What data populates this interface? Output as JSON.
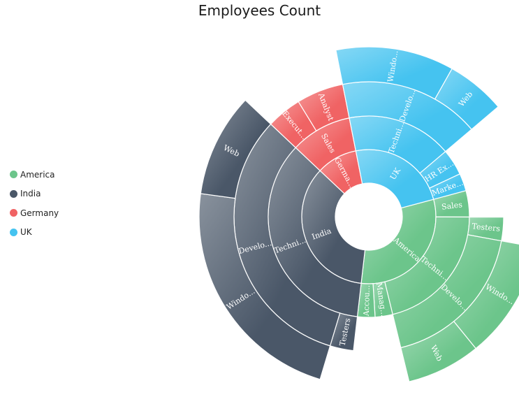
{
  "chart_data": {
    "type": "sunburst",
    "title": "Employees Count",
    "legend": {
      "placement": "left",
      "items": [
        {
          "name": "America",
          "color": "#6cc58b"
        },
        {
          "name": "India",
          "color": "#4a5768"
        },
        {
          "name": "Germany",
          "color": "#f06364"
        },
        {
          "name": "UK",
          "color": "#45c3f0"
        }
      ]
    },
    "nodes": [
      {
        "label": "America",
        "group": "America",
        "value": 22,
        "children": [
          {
            "label": "Sales",
            "value": 3
          },
          {
            "label": "Techni...",
            "value": 15,
            "children": [
              {
                "label": "Testers",
                "value": 2
              },
              {
                "label": "Develo...",
                "value": 13,
                "children": [
                  {
                    "label": "Windo...",
                    "value": 8
                  },
                  {
                    "label": "Web",
                    "value": 5
                  }
                ]
              }
            ]
          },
          {
            "label": "Manag...",
            "value": 2
          },
          {
            "label": "Accou...",
            "value": 2
          }
        ]
      },
      {
        "label": "India",
        "group": "India",
        "value": 25,
        "children": [
          {
            "label": "Techni...",
            "value": 25,
            "children": [
              {
                "label": "Testers",
                "value": 2
              },
              {
                "label": "Develo...",
                "value": 23,
                "children": [
                  {
                    "label": "Windo...",
                    "value": 16
                  },
                  {
                    "label": "Web",
                    "value": 7
                  }
                ]
              }
            ]
          }
        ]
      },
      {
        "label": "Germa...",
        "group": "Germany",
        "value": 7,
        "children": [
          {
            "label": "Sales",
            "value": 7,
            "children": [
              {
                "label": "Execut...",
                "value": 3
              },
              {
                "label": "Analyst",
                "value": 4
              }
            ]
          }
        ]
      },
      {
        "label": "UK",
        "group": "UK",
        "value": 17,
        "children": [
          {
            "label": "Techni...",
            "value": 12,
            "children": [
              {
                "label": "Develo...",
                "value": 12,
                "children": [
                  {
                    "label": "Windo...",
                    "value": 8
                  },
                  {
                    "label": "Web",
                    "value": 4
                  }
                ]
              }
            ]
          },
          {
            "label": "HR Ex...",
            "value": 3
          },
          {
            "label": "Marke...",
            "value": 2
          }
        ]
      }
    ]
  }
}
